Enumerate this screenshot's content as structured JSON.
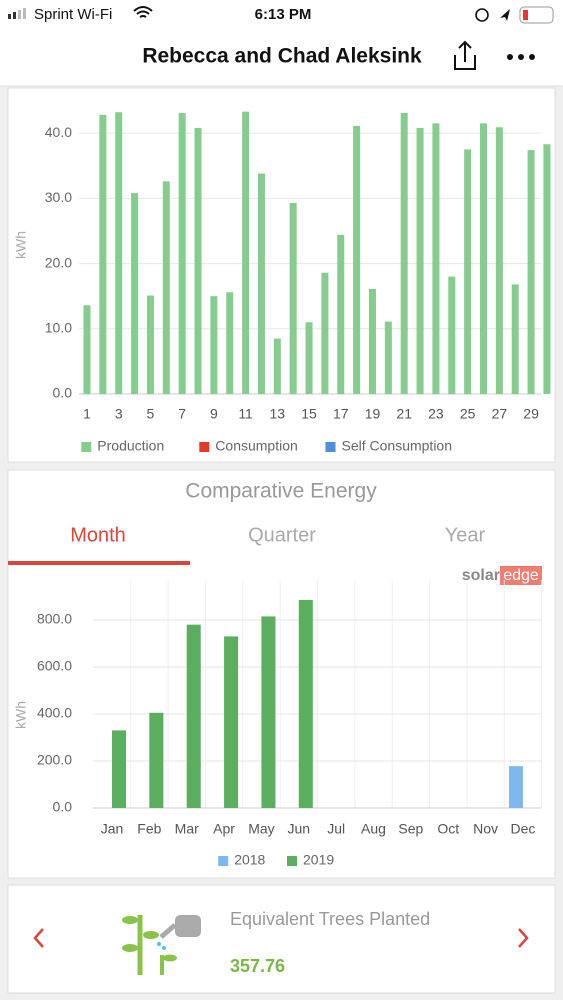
{
  "status_bar": {
    "carrier": "Sprint Wi-Fi",
    "time": "6:13 PM"
  },
  "header": {
    "title": "Rebecca and Chad Aleksink"
  },
  "comparative": {
    "title": "Comparative Energy",
    "tabs": [
      "Month",
      "Quarter",
      "Year"
    ],
    "logo": [
      "solar",
      "edge"
    ]
  },
  "trees": {
    "label": "Equivalent Trees Planted",
    "value": "357.76"
  },
  "chart_data": [
    {
      "type": "bar",
      "y_label": "kWh",
      "categories": [
        1,
        null,
        3,
        null,
        5,
        null,
        7,
        null,
        9,
        null,
        11,
        null,
        13,
        null,
        15,
        null,
        17,
        null,
        19,
        null,
        21,
        null,
        23,
        null,
        25,
        null,
        27,
        null,
        29,
        null
      ],
      "series": [
        {
          "name": "Production",
          "color": "#86cc8f",
          "values": [
            13.6,
            42.8,
            43.2,
            30.8,
            15.1,
            32.6,
            43.1,
            40.8,
            15.0,
            15.6,
            43.3,
            33.8,
            8.5,
            29.3,
            11.0,
            18.6,
            24.4,
            41.1,
            16.1,
            11.1,
            43.1,
            40.8,
            41.5,
            18.0,
            37.5,
            41.5,
            40.9,
            16.8,
            37.4,
            38.3
          ]
        },
        {
          "name": "Consumption",
          "color": "#e3392c",
          "values": [
            null,
            null,
            null,
            null,
            null,
            null,
            null,
            null,
            null,
            null,
            null,
            null,
            null,
            null,
            null,
            null,
            null,
            null,
            null,
            null,
            null,
            null,
            null,
            null,
            null,
            null,
            null,
            null,
            null,
            null
          ]
        },
        {
          "name": "Self Consumption",
          "color": "#4a8fe0",
          "values": [
            null,
            null,
            null,
            null,
            null,
            null,
            null,
            null,
            null,
            null,
            null,
            null,
            null,
            null,
            null,
            null,
            null,
            null,
            null,
            null,
            null,
            null,
            null,
            null,
            null,
            null,
            null,
            null,
            null,
            null
          ]
        }
      ],
      "ylim": [
        0,
        46
      ],
      "yticks": [
        {
          "value": 0,
          "label": "0.0"
        },
        {
          "value": 10,
          "label": "10.0"
        },
        {
          "value": 20,
          "label": "20.0"
        },
        {
          "value": 30,
          "label": "30.0"
        },
        {
          "value": 40,
          "label": "40.0"
        }
      ],
      "grid": true
    },
    {
      "type": "bar",
      "y_label": "kWh",
      "categories": [
        "Jan",
        "Feb",
        "Mar",
        "Apr",
        "May",
        "Jun",
        "Jul",
        "Aug",
        "Sep",
        "Oct",
        "Nov",
        "Dec"
      ],
      "series": [
        {
          "name": "2018",
          "color": "#7db8ee",
          "values": [
            null,
            null,
            null,
            null,
            null,
            null,
            null,
            null,
            null,
            null,
            null,
            178
          ]
        },
        {
          "name": "2019",
          "color": "#5aae5e",
          "values": [
            330,
            405,
            780,
            730,
            815,
            885,
            null,
            null,
            null,
            null,
            null,
            null
          ]
        }
      ],
      "ylim": [
        0,
        970
      ],
      "yticks": [
        {
          "value": 0,
          "label": "0.0"
        },
        {
          "value": 200,
          "label": "200.0"
        },
        {
          "value": 400,
          "label": "400.0"
        },
        {
          "value": 600,
          "label": "600.0"
        },
        {
          "value": 800,
          "label": "800.0"
        }
      ],
      "grid": true
    }
  ]
}
